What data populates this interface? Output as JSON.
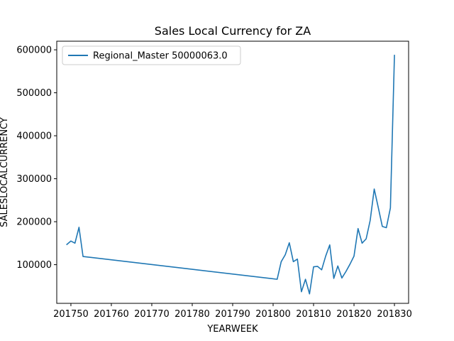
{
  "chart_data": {
    "type": "line",
    "title": "Sales Local Currency for ZA",
    "xlabel": "YEARWEEK",
    "ylabel": "SALESLOCALCURRENCY",
    "xlim": [
      201746.5,
      201833.5
    ],
    "ylim": [
      10000,
      620000
    ],
    "xticks": [
      201750,
      201760,
      201770,
      201780,
      201790,
      201800,
      201810,
      201820,
      201830
    ],
    "xtick_labels": [
      "201750",
      "201760",
      "201770",
      "201780",
      "201790",
      "201800",
      "201810",
      "201820",
      "201830"
    ],
    "yticks": [
      100000,
      200000,
      300000,
      400000,
      500000,
      600000
    ],
    "ytick_labels": [
      "100000",
      "200000",
      "300000",
      "400000",
      "500000",
      "600000"
    ],
    "grid": false,
    "legend_position": "top-left",
    "series": [
      {
        "name": "Regional_Master 50000063.0",
        "color": "#1f77b4",
        "x": [
          201749,
          201750,
          201751,
          201752,
          201753,
          201801,
          201802,
          201803,
          201804,
          201805,
          201806,
          201807,
          201808,
          201809,
          201810,
          201811,
          201812,
          201813,
          201814,
          201815,
          201816,
          201817,
          201818,
          201819,
          201820,
          201821,
          201822,
          201823,
          201824,
          201825,
          201826,
          201827,
          201828,
          201829,
          201830
        ],
        "y": [
          147000,
          155000,
          150000,
          187000,
          119000,
          66000,
          107000,
          123000,
          151000,
          107000,
          113000,
          37000,
          66000,
          32000,
          95000,
          96000,
          88000,
          120000,
          146000,
          68000,
          97000,
          69000,
          84000,
          101000,
          120000,
          184000,
          150000,
          160000,
          203000,
          276000,
          233000,
          189000,
          186000,
          232000,
          587000
        ]
      }
    ]
  }
}
